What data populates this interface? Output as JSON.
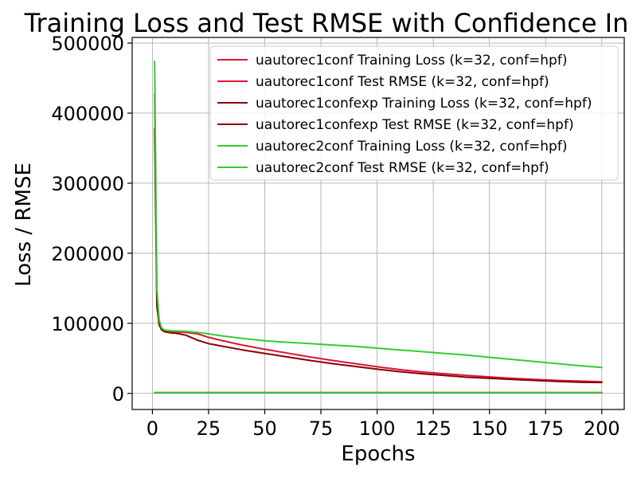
{
  "chart_data": {
    "type": "line",
    "title": "Training Loss and Test RMSE with Confidence In",
    "xlabel": "Epochs",
    "ylabel": "Loss / RMSE",
    "xlim": [
      -9,
      210
    ],
    "ylim": [
      -23000,
      508000
    ],
    "xticks": [
      0,
      25,
      50,
      75,
      100,
      125,
      150,
      175,
      200
    ],
    "yticks": [
      0,
      100000,
      200000,
      300000,
      400000,
      500000
    ],
    "grid": true,
    "legend_position": "top-right",
    "series": [
      {
        "name": "uautorec1conf Training Loss (k=32, conf=hpf)",
        "color": "#dc143c",
        "x": [
          1,
          2,
          3,
          4,
          5,
          6,
          8,
          10,
          12,
          15,
          20,
          25,
          30,
          40,
          50,
          60,
          70,
          80,
          90,
          100,
          110,
          120,
          130,
          140,
          150,
          160,
          170,
          180,
          190,
          200
        ],
        "y": [
          428000,
          140000,
          103000,
          93000,
          90000,
          89000,
          88500,
          88000,
          87500,
          87000,
          85000,
          80000,
          76000,
          69000,
          63000,
          57500,
          52000,
          47000,
          42500,
          38000,
          34000,
          30500,
          28000,
          25500,
          23500,
          21500,
          20000,
          18500,
          17500,
          16500
        ]
      },
      {
        "name": "uautorec1conf Test RMSE (k=32, conf=hpf)",
        "color": "#dc143c",
        "x": [
          1,
          50,
          100,
          150,
          200
        ],
        "y": [
          1000,
          1000,
          1000,
          1000,
          1000
        ]
      },
      {
        "name": "uautorec1confexp Training Loss (k=32, conf=hpf)",
        "color": "#8b0000",
        "x": [
          1,
          2,
          3,
          4,
          5,
          6,
          8,
          10,
          12,
          15,
          20,
          25,
          30,
          40,
          50,
          60,
          70,
          80,
          90,
          100,
          110,
          120,
          130,
          140,
          150,
          160,
          170,
          180,
          190,
          200
        ],
        "y": [
          378000,
          125000,
          98000,
          91000,
          88500,
          87500,
          86500,
          86000,
          85000,
          83000,
          76000,
          71000,
          68000,
          62000,
          57000,
          52000,
          47000,
          42500,
          38500,
          34500,
          31000,
          28000,
          25500,
          23000,
          21500,
          20000,
          18500,
          17000,
          16000,
          15500
        ]
      },
      {
        "name": "uautorec1confexp Test RMSE (k=32, conf=hpf)",
        "color": "#8b0000",
        "x": [
          1,
          50,
          100,
          150,
          200
        ],
        "y": [
          1000,
          1000,
          1000,
          1000,
          1000
        ]
      },
      {
        "name": "uautorec2conf Training Loss (k=32, conf=hpf)",
        "color": "#32cd32",
        "x": [
          1,
          2,
          3,
          4,
          5,
          6,
          8,
          10,
          12,
          15,
          20,
          25,
          30,
          40,
          50,
          60,
          70,
          80,
          90,
          100,
          110,
          120,
          130,
          140,
          150,
          160,
          170,
          180,
          190,
          200
        ],
        "y": [
          474000,
          150000,
          105000,
          94000,
          91000,
          90000,
          89500,
          89000,
          89000,
          88500,
          87000,
          85000,
          82500,
          78500,
          75000,
          73000,
          71000,
          69000,
          67000,
          64500,
          62000,
          59500,
          57000,
          54500,
          51500,
          48500,
          45500,
          42500,
          39500,
          37000
        ]
      },
      {
        "name": "uautorec2conf Test RMSE (k=32, conf=hpf)",
        "color": "#32cd32",
        "x": [
          1,
          50,
          100,
          150,
          200
        ],
        "y": [
          1000,
          1000,
          1000,
          1000,
          1000
        ]
      }
    ]
  }
}
